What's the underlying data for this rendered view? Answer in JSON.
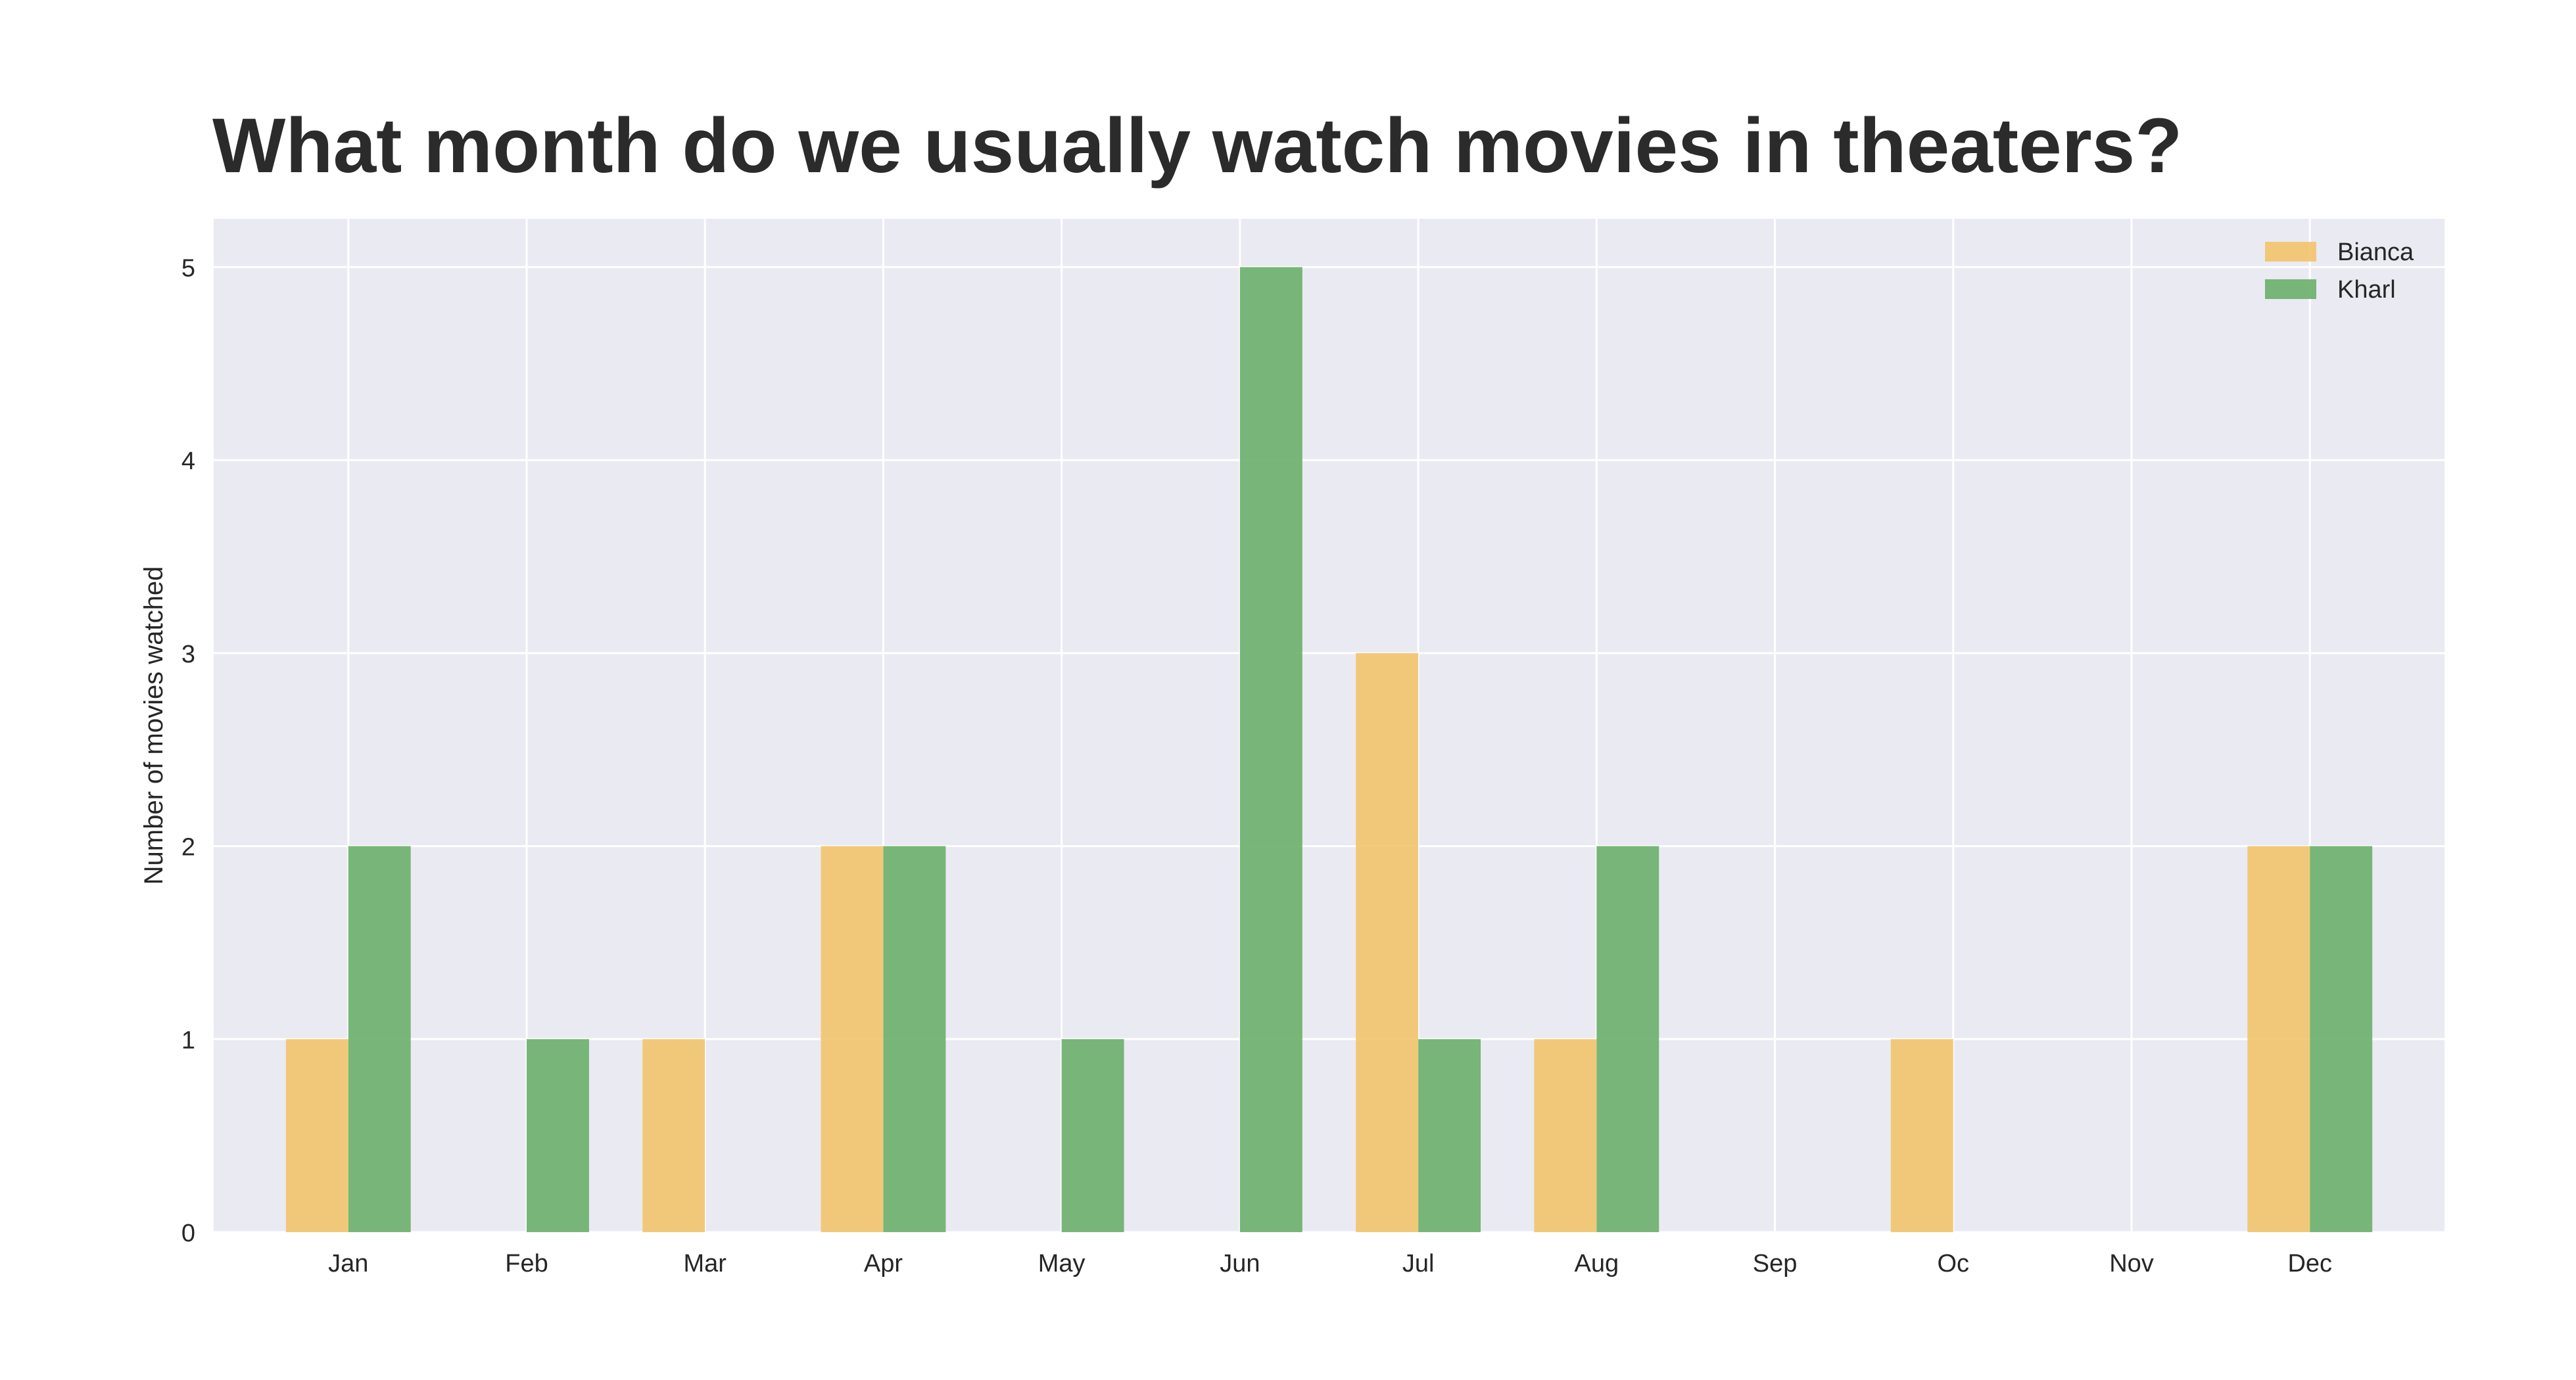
{
  "chart_data": {
    "type": "bar",
    "title": "What month do we usually watch movies in theaters?",
    "xlabel": "",
    "ylabel": "Number of movies watched",
    "categories": [
      "Jan",
      "Feb",
      "Mar",
      "Apr",
      "May",
      "Jun",
      "Jul",
      "Aug",
      "Sep",
      "Oc",
      "Nov",
      "Dec"
    ],
    "series": [
      {
        "name": "Bianca",
        "color": "#f2c46d",
        "values": [
          1,
          0,
          1,
          2,
          0,
          0,
          3,
          1,
          0,
          1,
          0,
          2
        ]
      },
      {
        "name": "Kharl",
        "color": "#6aaf6a",
        "values": [
          2,
          1,
          0,
          2,
          1,
          5,
          1,
          2,
          0,
          0,
          0,
          2
        ]
      }
    ],
    "ylim": [
      0,
      5.25
    ],
    "yticks": [
      "0",
      "1",
      "2",
      "3",
      "4",
      "5"
    ],
    "grid": true,
    "legend_position": "top-right",
    "background": "#eaeaf2"
  }
}
